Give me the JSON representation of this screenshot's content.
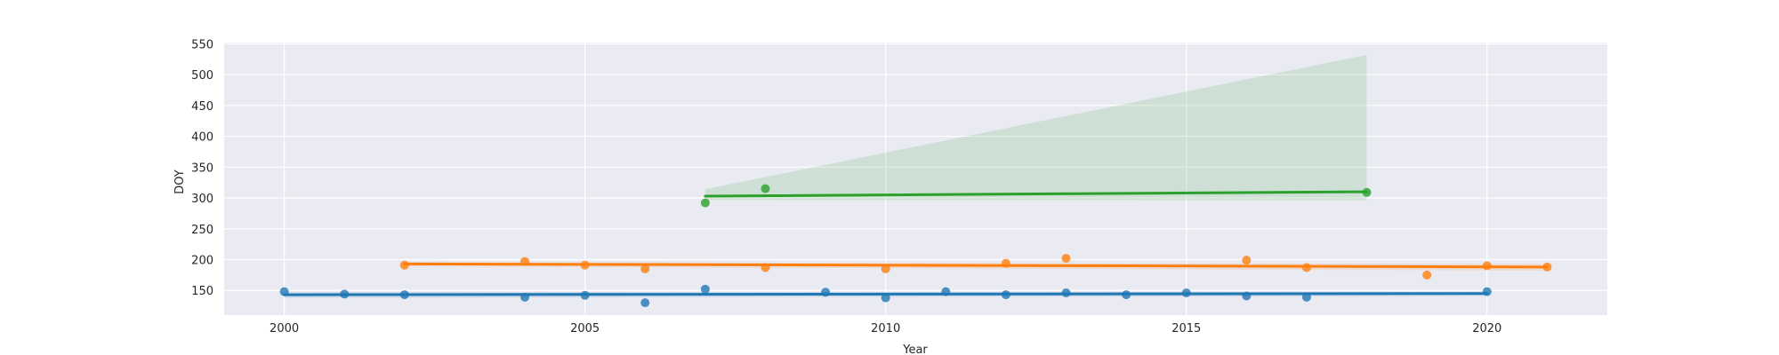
{
  "chart_data": {
    "type": "scatter",
    "title": "",
    "xlabel": "Year",
    "ylabel": "DOY",
    "xlim": [
      1999,
      2022
    ],
    "ylim": [
      110,
      552
    ],
    "xticks": [
      2000,
      2005,
      2010,
      2015,
      2020
    ],
    "yticks": [
      150,
      200,
      250,
      300,
      350,
      400,
      450,
      500,
      550
    ],
    "grid": true,
    "legend": "none",
    "background": "#eaeaf2",
    "series": [
      {
        "color": "#1f77b4",
        "points": [
          [
            2000,
            148
          ],
          [
            2001,
            144
          ],
          [
            2002,
            143
          ],
          [
            2004,
            139
          ],
          [
            2005,
            142
          ],
          [
            2006,
            130
          ],
          [
            2007,
            152
          ],
          [
            2009,
            147
          ],
          [
            2010,
            138
          ],
          [
            2011,
            148
          ],
          [
            2012,
            143
          ],
          [
            2013,
            146
          ],
          [
            2014,
            143
          ],
          [
            2015,
            146
          ],
          [
            2016,
            141
          ],
          [
            2017,
            139
          ],
          [
            2020,
            148
          ]
        ],
        "fit": [
          [
            2000,
            143
          ],
          [
            2020,
            145
          ]
        ],
        "band": {
          "x": [
            2000,
            2020
          ],
          "upper": [
            147,
            148
          ],
          "lower": [
            138,
            141
          ]
        }
      },
      {
        "color": "#ff7f0e",
        "points": [
          [
            2002,
            191
          ],
          [
            2004,
            197
          ],
          [
            2005,
            191
          ],
          [
            2006,
            185
          ],
          [
            2008,
            187
          ],
          [
            2010,
            185
          ],
          [
            2012,
            194
          ],
          [
            2013,
            202
          ],
          [
            2016,
            199
          ],
          [
            2017,
            187
          ],
          [
            2019,
            175
          ],
          [
            2020,
            190
          ],
          [
            2021,
            188
          ]
        ],
        "fit": [
          [
            2002,
            193
          ],
          [
            2021,
            188
          ]
        ],
        "band": {
          "x": [
            2002,
            2021
          ],
          "upper": [
            196,
            193
          ],
          "lower": [
            189,
            182
          ]
        }
      },
      {
        "color": "#2ca02c",
        "points": [
          [
            2007,
            292
          ],
          [
            2008,
            315
          ],
          [
            2018,
            309
          ]
        ],
        "fit": [
          [
            2007,
            303
          ],
          [
            2018,
            310
          ]
        ],
        "band": {
          "x": [
            2007,
            2018
          ],
          "upper": [
            314,
            532
          ],
          "lower": [
            297,
            296
          ]
        }
      }
    ]
  }
}
